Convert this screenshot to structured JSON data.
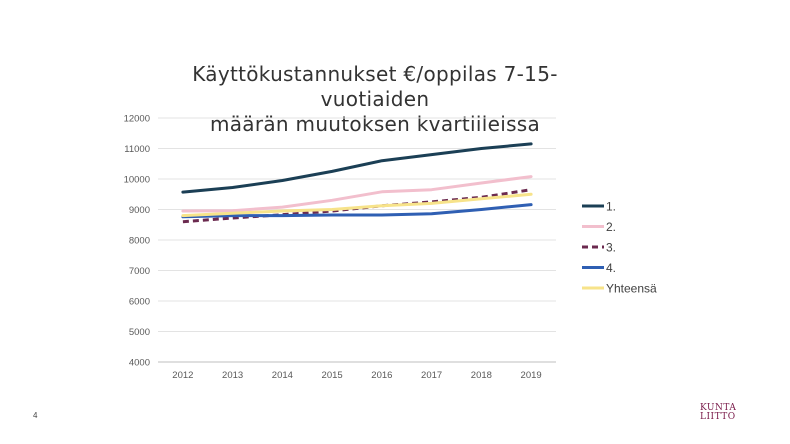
{
  "slide": {
    "title_line1": "Käyttökustannukset  €/oppilas 7-15-vuotiaiden",
    "title_line2": "määrän muutoksen kvartiileissa",
    "page_number": "4",
    "logo_line1": "KUNTA",
    "logo_line2": "LIITTO"
  },
  "chart_data": {
    "type": "line",
    "title": "Käyttökustannukset  €/oppilas 7-15-vuotiaiden määrän muutoksen kvartiileissa",
    "categories": [
      "2012",
      "2013",
      "2014",
      "2015",
      "2016",
      "2017",
      "2018",
      "2019"
    ],
    "ylim": [
      4000,
      12000
    ],
    "yticks": [
      4000,
      5000,
      6000,
      7000,
      8000,
      9000,
      10000,
      11000,
      12000
    ],
    "grid": true,
    "legend_position": "right",
    "series": [
      {
        "name": "1.",
        "color": "#1b3f55",
        "dash": false,
        "values": [
          9570,
          9720,
          9950,
          10250,
          10600,
          10800,
          11000,
          11150
        ]
      },
      {
        "name": "2.",
        "color": "#f2bfcd",
        "dash": false,
        "values": [
          8950,
          8960,
          9080,
          9300,
          9580,
          9650,
          9870,
          10080
        ]
      },
      {
        "name": "3.",
        "color": "#6b2a4f",
        "dash": true,
        "values": [
          8600,
          8720,
          8830,
          8950,
          9120,
          9250,
          9400,
          9650
        ]
      },
      {
        "name": "4.",
        "color": "#2f5fb3",
        "dash": false,
        "values": [
          8760,
          8800,
          8800,
          8820,
          8820,
          8860,
          9000,
          9160
        ]
      },
      {
        "name": "Yhteensä",
        "color": "#f7e38a",
        "dash": false,
        "values": [
          8800,
          8880,
          8950,
          9000,
          9120,
          9200,
          9350,
          9500
        ]
      }
    ]
  }
}
